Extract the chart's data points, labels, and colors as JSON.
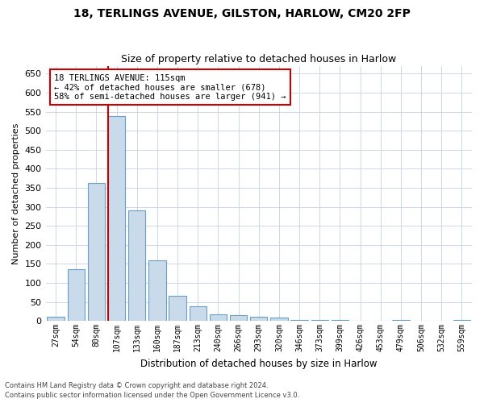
{
  "title1": "18, TERLINGS AVENUE, GILSTON, HARLOW, CM20 2FP",
  "title2": "Size of property relative to detached houses in Harlow",
  "xlabel": "Distribution of detached houses by size in Harlow",
  "ylabel": "Number of detached properties",
  "bar_labels": [
    "27sqm",
    "54sqm",
    "80sqm",
    "107sqm",
    "133sqm",
    "160sqm",
    "187sqm",
    "213sqm",
    "240sqm",
    "266sqm",
    "293sqm",
    "320sqm",
    "346sqm",
    "373sqm",
    "399sqm",
    "426sqm",
    "453sqm",
    "479sqm",
    "506sqm",
    "532sqm",
    "559sqm"
  ],
  "bar_values": [
    10,
    135,
    362,
    538,
    291,
    160,
    67,
    38,
    17,
    15,
    10,
    8,
    3,
    3,
    2,
    0,
    0,
    3,
    0,
    0,
    3
  ],
  "bar_color": "#c9daea",
  "bar_edge_color": "#6a9fc8",
  "highlight_bar_index": 3,
  "vline_color": "#cc0000",
  "annotation_text": "18 TERLINGS AVENUE: 115sqm\n← 42% of detached houses are smaller (678)\n58% of semi-detached houses are larger (941) →",
  "annotation_box_color": "#ffffff",
  "annotation_box_edge": "#cc0000",
  "ylim": [
    0,
    670
  ],
  "yticks": [
    0,
    50,
    100,
    150,
    200,
    250,
    300,
    350,
    400,
    450,
    500,
    550,
    600,
    650
  ],
  "footer1": "Contains HM Land Registry data © Crown copyright and database right 2024.",
  "footer2": "Contains public sector information licensed under the Open Government Licence v3.0.",
  "background_color": "#ffffff",
  "grid_color": "#ccd6e8"
}
